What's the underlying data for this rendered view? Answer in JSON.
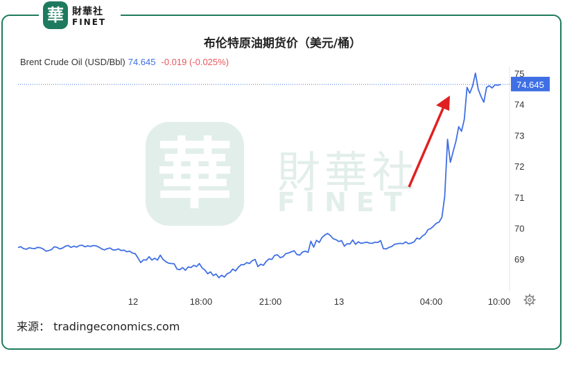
{
  "brand": {
    "badge_char": "華",
    "name_cn": "財華社",
    "name_en": "FINET",
    "watermark_char": "華",
    "watermark_cn": "財華社",
    "watermark_en": "FINET",
    "color": "#1e7a5e"
  },
  "chart_data": {
    "type": "line",
    "title": "布伦特原油期货价（美元/桶）",
    "legend": {
      "name": "Brent Crude Oil (USD/Bbl)",
      "price": "74.645",
      "change": "-0.019 (-0.025%)"
    },
    "x_ticks": [
      "12",
      "18:00",
      "21:00",
      "13",
      "04:00",
      "10:00"
    ],
    "y_ticks": [
      "69",
      "70",
      "71",
      "72",
      "73",
      "74",
      "75"
    ],
    "ylim": [
      68,
      75.3
    ],
    "current_value": 74.645,
    "current_label": "74.645",
    "series": [
      {
        "values": [
          69.38,
          69.4,
          69.34,
          69.32,
          69.37,
          69.35,
          69.34,
          69.38,
          69.37,
          69.33,
          69.26,
          69.28,
          69.31,
          69.4,
          69.38,
          69.33,
          69.36,
          69.42,
          69.44,
          69.38,
          69.42,
          69.39,
          69.44,
          69.45,
          69.4,
          69.43,
          69.41,
          69.44,
          69.43,
          69.39,
          69.33,
          69.3,
          69.34,
          69.36,
          69.3,
          69.3,
          69.33,
          69.28,
          69.29,
          69.24,
          69.26,
          69.2,
          69.18,
          69.04,
          68.89,
          68.98,
          68.97,
          69.08,
          68.97,
          69.03,
          68.97,
          69.13,
          68.99,
          68.92,
          68.87,
          68.86,
          68.85,
          68.68,
          68.66,
          68.73,
          68.64,
          68.75,
          68.73,
          68.8,
          68.76,
          68.86,
          68.72,
          68.65,
          68.53,
          68.59,
          68.47,
          68.52,
          68.4,
          68.48,
          68.42,
          68.53,
          68.57,
          68.68,
          68.62,
          68.74,
          68.82,
          68.82,
          68.89,
          68.86,
          68.95,
          68.99,
          68.76,
          68.84,
          68.8,
          68.93,
          69.01,
          68.99,
          69.12,
          69.14,
          69.05,
          69.08,
          69.18,
          69.2,
          69.24,
          69.27,
          69.15,
          69.13,
          69.23,
          69.26,
          69.22,
          69.58,
          69.39,
          69.61,
          69.54,
          69.7,
          69.78,
          69.83,
          69.76,
          69.66,
          69.63,
          69.57,
          69.6,
          69.42,
          69.5,
          69.49,
          69.62,
          69.48,
          69.56,
          69.51,
          69.53,
          69.55,
          69.52,
          69.51,
          69.55,
          69.54,
          69.6,
          69.34,
          69.33,
          69.38,
          69.41,
          69.48,
          69.5,
          69.51,
          69.5,
          69.56,
          69.5,
          69.52,
          69.56,
          69.68,
          69.65,
          69.75,
          69.81,
          69.95,
          69.99,
          70.07,
          70.16,
          70.2,
          70.36,
          71.03,
          72.87,
          72.13,
          72.47,
          72.8,
          73.28,
          73.13,
          73.51,
          74.55,
          74.36,
          74.6,
          75.01,
          74.49,
          74.26,
          74.07,
          74.55,
          74.6,
          74.53,
          74.63,
          74.62,
          74.64
        ]
      }
    ],
    "annotation": "red upward arrow pointing to price jump"
  },
  "chart_settings": {
    "line_color": "#3f6fe4",
    "arrow_color": "#e02020",
    "grid": false,
    "legend_position": "top-left"
  },
  "source": "来源： tradingeconomics.com",
  "icons": [
    "gear-icon"
  ]
}
